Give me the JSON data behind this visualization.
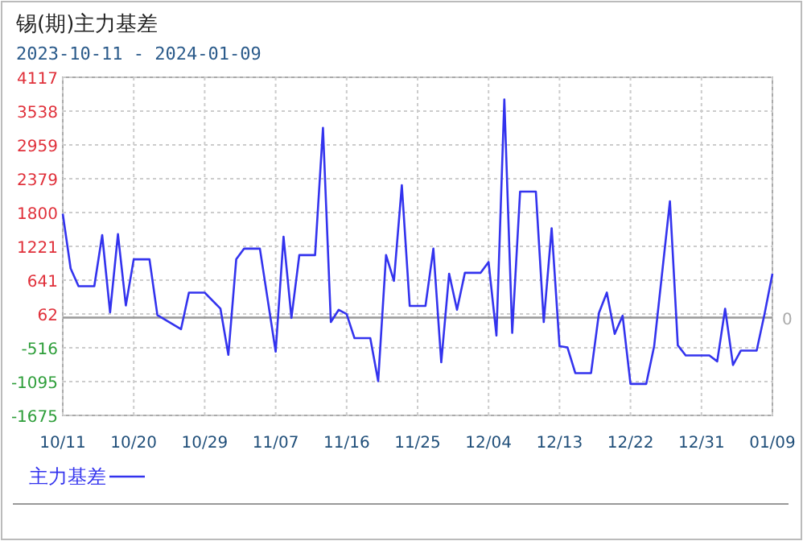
{
  "chart_data": {
    "type": "line",
    "title": "锡(期)主力基差",
    "subtitle": "2023-10-11 - 2024-01-09",
    "x": [
      "2023-10-11",
      "2023-10-12",
      "2023-10-13",
      "2023-10-15",
      "2023-10-16",
      "2023-10-17",
      "2023-10-18",
      "2023-10-19",
      "2023-10-20",
      "2023-10-22",
      "2023-10-23",
      "2023-10-26",
      "2023-10-27",
      "2023-10-29",
      "2023-10-31",
      "2023-11-01",
      "2023-11-02",
      "2023-11-03",
      "2023-11-05",
      "2023-11-07",
      "2023-11-08",
      "2023-11-09",
      "2023-11-10",
      "2023-11-12",
      "2023-11-13",
      "2023-11-14",
      "2023-11-15",
      "2023-11-16",
      "2023-11-17",
      "2023-11-19",
      "2023-11-20",
      "2023-11-21",
      "2023-11-22",
      "2023-11-23",
      "2023-11-24",
      "2023-11-26",
      "2023-11-27",
      "2023-11-28",
      "2023-11-29",
      "2023-11-30",
      "2023-12-01",
      "2023-12-03",
      "2023-12-04",
      "2023-12-05",
      "2023-12-06",
      "2023-12-07",
      "2023-12-08",
      "2023-12-10",
      "2023-12-11",
      "2023-12-12",
      "2023-12-13",
      "2023-12-14",
      "2023-12-15",
      "2023-12-17",
      "2023-12-18",
      "2023-12-19",
      "2023-12-20",
      "2023-12-21",
      "2023-12-22",
      "2023-12-24",
      "2023-12-25",
      "2023-12-27",
      "2023-12-28",
      "2023-12-29",
      "2024-01-01",
      "2024-01-02",
      "2024-01-03",
      "2024-01-04",
      "2024-01-05",
      "2024-01-07",
      "2024-01-08",
      "2024-01-09"
    ],
    "series": [
      {
        "name": "主力基差",
        "color": "#3333ee",
        "values": [
          1780,
          842,
          539,
          539,
          1414,
          90,
          1430,
          208,
          999,
          999,
          43,
          -197,
          429,
          429,
          153,
          -638,
          999,
          1182,
          1182,
          -583,
          1386,
          -4,
          1071,
          1071,
          3250,
          -76,
          134,
          62,
          -352,
          -352,
          -1088,
          1071,
          630,
          2268,
          200,
          200,
          1182,
          -765,
          752,
          134,
          768,
          768,
          953,
          -307,
          3738,
          -261,
          2158,
          2158,
          -76,
          1532,
          -490,
          -509,
          -950,
          -950,
          79,
          429,
          -280,
          32,
          -1135,
          -1135,
          -490,
          1993,
          -473,
          -647,
          -647,
          -749,
          153,
          -812,
          -564,
          -564,
          62,
          752
        ]
      }
    ],
    "xlim": [
      "2023-10-11",
      "2024-01-09"
    ],
    "xticks": [
      {
        "value": "2023-10-11",
        "label": "10/11"
      },
      {
        "value": "2023-10-20",
        "label": "10/20"
      },
      {
        "value": "2023-10-29",
        "label": "10/29"
      },
      {
        "value": "2023-11-07",
        "label": "11/07"
      },
      {
        "value": "2023-11-16",
        "label": "11/16"
      },
      {
        "value": "2023-11-25",
        "label": "11/25"
      },
      {
        "value": "2023-12-04",
        "label": "12/04"
      },
      {
        "value": "2023-12-13",
        "label": "12/13"
      },
      {
        "value": "2023-12-22",
        "label": "12/22"
      },
      {
        "value": "2023-12-31",
        "label": "12/31"
      },
      {
        "value": "2024-01-09",
        "label": "01/09"
      }
    ],
    "ylim": [
      -1675,
      4117
    ],
    "yticks": [
      -1675,
      -1095,
      -516,
      62,
      641,
      1221,
      1800,
      2379,
      2959,
      3538,
      4117
    ],
    "ref_lines": [
      {
        "axis": "y",
        "value": 0,
        "label": "0",
        "color": "#999999"
      }
    ],
    "grid": true,
    "legend": "bottom left",
    "line_style": "solid"
  }
}
